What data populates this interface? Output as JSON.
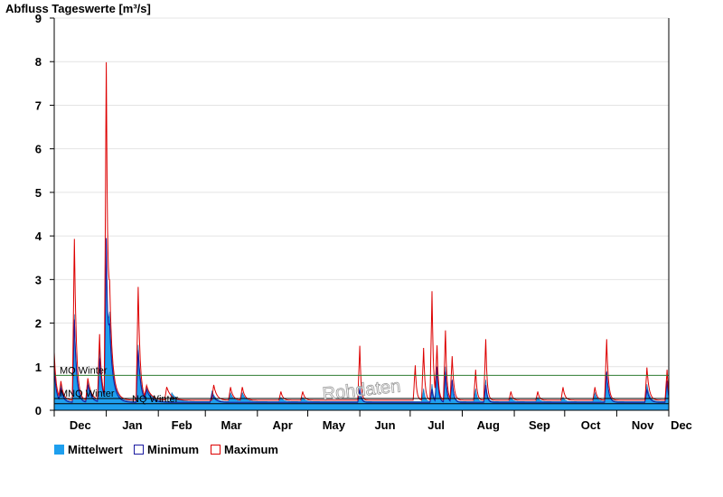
{
  "chart_data": {
    "type": "area",
    "title": "Abfluss Tageswerte [m³/s]",
    "ylim": [
      0,
      9
    ],
    "yticks": [
      0,
      1,
      2,
      3,
      4,
      5,
      6,
      7,
      8,
      9
    ],
    "x_range_days": [
      0,
      366
    ],
    "month_labels": [
      {
        "label": "Dec",
        "day": 0
      },
      {
        "label": "Jan",
        "day": 31
      },
      {
        "label": "Feb",
        "day": 62
      },
      {
        "label": "Mar",
        "day": 90
      },
      {
        "label": "Apr",
        "day": 121
      },
      {
        "label": "May",
        "day": 151
      },
      {
        "label": "Jun",
        "day": 182
      },
      {
        "label": "Jul",
        "day": 212
      },
      {
        "label": "Aug",
        "day": 243
      },
      {
        "label": "Sep",
        "day": 274
      },
      {
        "label": "Oct",
        "day": 304
      },
      {
        "label": "Nov",
        "day": 335
      },
      {
        "label": "Dec",
        "day": 366
      }
    ],
    "reference_lines": [
      {
        "label": "MQ Winter",
        "value": 0.8,
        "color": "#2e7d32"
      },
      {
        "label": "MNQ Winter",
        "value": 0.27,
        "color": "#000000"
      },
      {
        "label": "NQ Winter",
        "value": 0.15,
        "color": "#000000"
      }
    ],
    "watermark": "Rohdaten",
    "series": [
      {
        "name": "Mittelwert",
        "color": "#1e9fee",
        "baseline": 0.2,
        "peaks": [
          [
            0,
            0.9,
            1.2
          ],
          [
            4,
            0.4,
            1.5
          ],
          [
            12,
            2.0,
            1.4
          ],
          [
            20,
            0.5,
            2.0
          ],
          [
            27,
            1.3,
            1.5
          ],
          [
            31,
            3.5,
            1.4
          ],
          [
            33,
            1.2,
            2.5
          ],
          [
            50,
            1.3,
            1.6
          ],
          [
            55,
            0.3,
            3
          ],
          [
            70,
            0.2,
            3
          ],
          [
            94,
            0.25,
            2
          ],
          [
            105,
            0.2,
            2
          ],
          [
            112,
            0.2,
            2
          ],
          [
            135,
            0.1,
            1.5
          ],
          [
            148,
            0.1,
            1.5
          ],
          [
            182,
            0.35,
            0.9
          ],
          [
            220,
            0.3,
            0.9
          ],
          [
            225,
            0.4,
            0.9
          ],
          [
            228,
            0.8,
            0.9
          ],
          [
            233,
            0.8,
            0.9
          ],
          [
            237,
            0.5,
            1.0
          ],
          [
            251,
            0.3,
            0.9
          ],
          [
            257,
            0.5,
            0.9
          ],
          [
            272,
            0.1,
            1.2
          ],
          [
            288,
            0.1,
            1.2
          ],
          [
            303,
            0.1,
            1.2
          ],
          [
            322,
            0.2,
            1.5
          ],
          [
            329,
            0.7,
            1.2
          ],
          [
            353,
            0.4,
            1.5
          ],
          [
            365,
            0.45,
            0.8
          ]
        ]
      },
      {
        "name": "Minimum",
        "color": "#1a1aa0",
        "baseline": 0.18,
        "peaks": [
          [
            0,
            0.8,
            1.2
          ],
          [
            4,
            0.3,
            1.5
          ],
          [
            12,
            1.9,
            1.3
          ],
          [
            20,
            0.4,
            2.0
          ],
          [
            27,
            1.0,
            1.5
          ],
          [
            31,
            3.7,
            1.3
          ],
          [
            33,
            1.0,
            2.5
          ],
          [
            50,
            1.2,
            1.5
          ],
          [
            55,
            0.25,
            3
          ],
          [
            94,
            0.2,
            2
          ],
          [
            182,
            0.3,
            0.9
          ],
          [
            225,
            0.3,
            0.9
          ],
          [
            228,
            0.8,
            0.9
          ],
          [
            233,
            0.7,
            0.9
          ],
          [
            237,
            0.5,
            1.0
          ],
          [
            257,
            0.4,
            0.9
          ],
          [
            329,
            0.7,
            1.2
          ],
          [
            353,
            0.3,
            1.5
          ],
          [
            365,
            0.5,
            0.8
          ]
        ]
      },
      {
        "name": "Maximum",
        "color": "#dd0000",
        "baseline": 0.23,
        "peaks": [
          [
            0,
            1.1,
            1.2
          ],
          [
            4,
            0.4,
            1.5
          ],
          [
            12,
            3.7,
            1.2
          ],
          [
            20,
            0.5,
            2.0
          ],
          [
            27,
            1.5,
            1.2
          ],
          [
            31,
            7.7,
            1.1
          ],
          [
            33,
            1.5,
            2.3
          ],
          [
            50,
            2.6,
            1.2
          ],
          [
            55,
            0.3,
            3
          ],
          [
            67,
            0.3,
            2.5
          ],
          [
            95,
            0.35,
            1.8
          ],
          [
            105,
            0.3,
            1.5
          ],
          [
            112,
            0.3,
            1.5
          ],
          [
            135,
            0.2,
            1.2
          ],
          [
            148,
            0.2,
            1.2
          ],
          [
            182,
            1.25,
            0.7
          ],
          [
            215,
            0.8,
            0.8
          ],
          [
            220,
            1.2,
            0.8
          ],
          [
            225,
            2.5,
            0.8
          ],
          [
            228,
            1.2,
            0.8
          ],
          [
            233,
            1.6,
            0.8
          ],
          [
            237,
            1.0,
            1.0
          ],
          [
            251,
            0.7,
            0.8
          ],
          [
            257,
            1.4,
            0.8
          ],
          [
            272,
            0.2,
            1
          ],
          [
            288,
            0.2,
            1
          ],
          [
            303,
            0.3,
            1.2
          ],
          [
            322,
            0.3,
            1.2
          ],
          [
            329,
            1.4,
            1.0
          ],
          [
            353,
            0.75,
            1.3
          ],
          [
            365,
            0.7,
            0.8
          ]
        ]
      }
    ],
    "legend": [
      "Mittelwert",
      "Minimum",
      "Maximum"
    ]
  }
}
